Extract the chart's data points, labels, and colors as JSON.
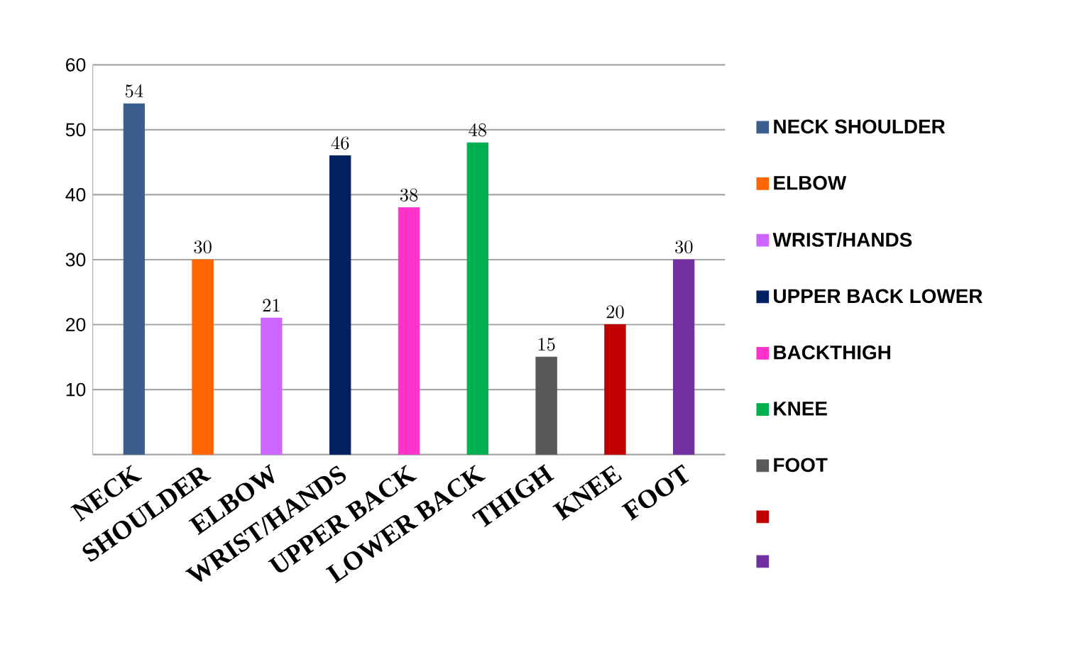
{
  "chart_data": {
    "type": "bar",
    "categories": [
      "NECK",
      "SHOULDER",
      "ELBOW",
      "WRIST/HANDS",
      "UPPER BACK",
      "LOWER BACK",
      "THIGH",
      "KNEE",
      "FOOT"
    ],
    "series": [
      {
        "name": "NECK SHOULDER",
        "color": "#3a5f8f",
        "values": [
          54,
          null,
          null,
          null,
          null,
          null,
          null,
          null,
          null
        ]
      },
      {
        "name": "ELBOW",
        "color": "#ff6600",
        "values": [
          null,
          30,
          null,
          null,
          null,
          null,
          null,
          null,
          null
        ]
      },
      {
        "name": "WRIST/HANDS",
        "color": "#cc66ff",
        "values": [
          null,
          null,
          21,
          null,
          null,
          null,
          null,
          null,
          null
        ]
      },
      {
        "name": "UPPER BACK LOWER",
        "color": "#002060",
        "values": [
          null,
          null,
          null,
          46,
          null,
          null,
          null,
          null,
          null
        ]
      },
      {
        "name": "BACKTHIGH",
        "color": "#ff33cc",
        "values": [
          null,
          null,
          null,
          null,
          38,
          null,
          null,
          null,
          null
        ]
      },
      {
        "name": "KNEE",
        "color": "#00b050",
        "values": [
          null,
          null,
          null,
          null,
          null,
          48,
          null,
          null,
          null
        ]
      },
      {
        "name": "FOOT",
        "color": "#595959",
        "values": [
          null,
          null,
          null,
          null,
          null,
          null,
          15,
          null,
          null
        ]
      },
      {
        "color": "#c00000",
        "values": [
          null,
          null,
          null,
          null,
          null,
          null,
          null,
          20,
          null
        ]
      },
      {
        "color": "#7030a0",
        "values": [
          null,
          null,
          null,
          null,
          null,
          null,
          null,
          null,
          30
        ]
      }
    ],
    "ylim": [
      0,
      60
    ],
    "yticks": [
      {
        "value": 0,
        "label": null
      },
      10,
      20,
      30,
      40,
      50,
      60
    ],
    "grid": "y",
    "legend": "right",
    "data_labels": true
  }
}
